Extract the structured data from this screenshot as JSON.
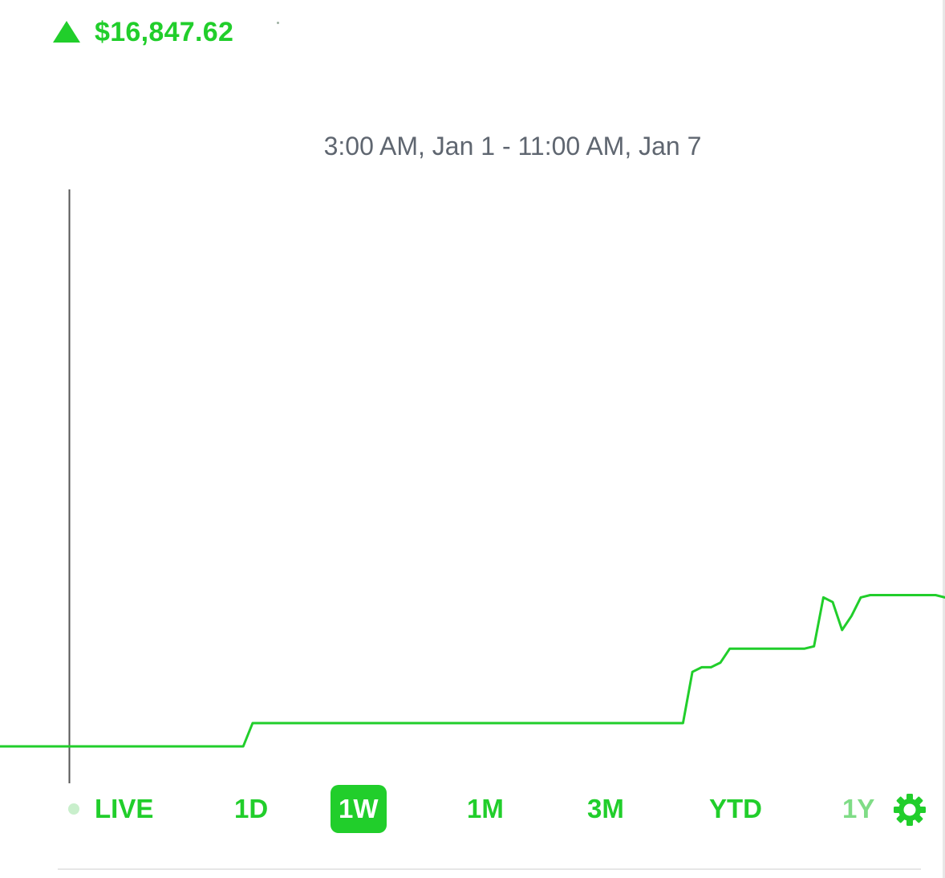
{
  "header": {
    "price": "$16,847.62",
    "trend_icon": "up-triangle-icon",
    "accent_color": "#21ce2b"
  },
  "chart": {
    "range_label": "3:00 AM, Jan 1 - 11:00 AM, Jan 7",
    "line_color": "#21ce2b"
  },
  "chart_data": {
    "type": "line",
    "title": "",
    "xlabel": "",
    "ylabel": "",
    "x_range": [
      "3:00 AM, Jan 1",
      "11:00 AM, Jan 7"
    ],
    "series": [
      {
        "values": [
          0,
          0,
          0,
          0,
          0,
          0,
          0,
          0,
          0,
          0,
          0,
          0,
          0,
          0,
          0,
          0,
          0,
          0,
          0,
          0,
          0,
          0,
          0,
          0,
          0,
          0,
          0,
          1,
          1,
          1,
          1,
          1,
          1,
          1,
          1,
          1,
          1,
          1,
          1,
          1,
          1,
          1,
          1,
          1,
          1,
          1,
          1,
          1,
          1,
          1,
          1,
          1,
          1,
          1,
          1,
          1,
          1,
          1,
          1,
          1,
          1,
          1,
          1,
          1,
          1,
          1,
          1,
          1,
          1,
          1,
          1,
          1,
          1,
          1,
          3.2,
          3.4,
          3.4,
          3.6,
          4.2,
          4.2,
          4.2,
          4.2,
          4.2,
          4.2,
          4.2,
          4.2,
          4.2,
          4.3,
          6.4,
          6.2,
          5.0,
          5.6,
          6.4,
          6.5,
          6.5,
          6.5,
          6.5,
          6.5,
          6.5,
          6.5,
          6.5,
          6.4
        ]
      }
    ],
    "grid": false,
    "legend": "none"
  },
  "timeframes": {
    "items": [
      {
        "key": "live",
        "label": "LIVE",
        "active": false,
        "faded": false
      },
      {
        "key": "1d",
        "label": "1D",
        "active": false,
        "faded": false
      },
      {
        "key": "1w",
        "label": "1W",
        "active": true,
        "faded": false
      },
      {
        "key": "1m",
        "label": "1M",
        "active": false,
        "faded": false
      },
      {
        "key": "3m",
        "label": "3M",
        "active": false,
        "faded": false
      },
      {
        "key": "ytd",
        "label": "YTD",
        "active": false,
        "faded": false
      },
      {
        "key": "1y",
        "label": "1Y",
        "active": false,
        "faded": true
      }
    ],
    "settings_icon": "gear-icon"
  }
}
